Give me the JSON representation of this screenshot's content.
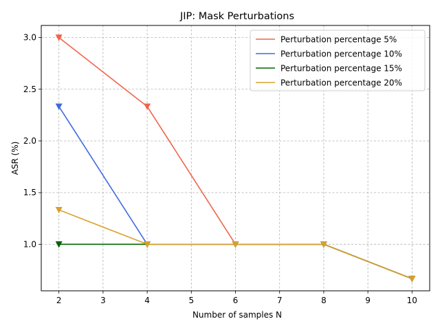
{
  "chart_data": {
    "type": "line",
    "title": "JIP: Mask Perturbations",
    "xlabel": "Number of samples N",
    "ylabel": "ASR (%)",
    "x": [
      2,
      4,
      6,
      8,
      10
    ],
    "xticks": [
      2,
      3,
      4,
      5,
      6,
      7,
      8,
      9,
      10
    ],
    "yticks": [
      1.0,
      1.5,
      2.0,
      2.5,
      3.0
    ],
    "xtick_labels": [
      "2",
      "3",
      "4",
      "5",
      "6",
      "7",
      "8",
      "9",
      "10"
    ],
    "ytick_labels": [
      "1.0",
      "1.5",
      "2.0",
      "2.5",
      "3.0"
    ],
    "xlim": [
      1.6,
      10.4
    ],
    "ylim": [
      0.55,
      3.117
    ],
    "grid": true,
    "grid_style": "dashed",
    "legend_position": "top-right",
    "marker": "triangle-down",
    "series": [
      {
        "name": "Perturbation percentage 5%",
        "color": "#f0644a",
        "values": [
          3.0,
          2.333,
          1.0,
          1.0,
          0.667
        ]
      },
      {
        "name": "Perturbation percentage 10%",
        "color": "#4169e1",
        "values": [
          2.333,
          1.0,
          1.0,
          1.0,
          0.667
        ]
      },
      {
        "name": "Perturbation percentage 15%",
        "color": "#006400",
        "values": [
          1.0,
          1.0,
          1.0,
          1.0,
          0.667
        ]
      },
      {
        "name": "Perturbation percentage 20%",
        "color": "#daa02a",
        "values": [
          1.333,
          1.0,
          1.0,
          1.0,
          0.667
        ]
      }
    ]
  }
}
